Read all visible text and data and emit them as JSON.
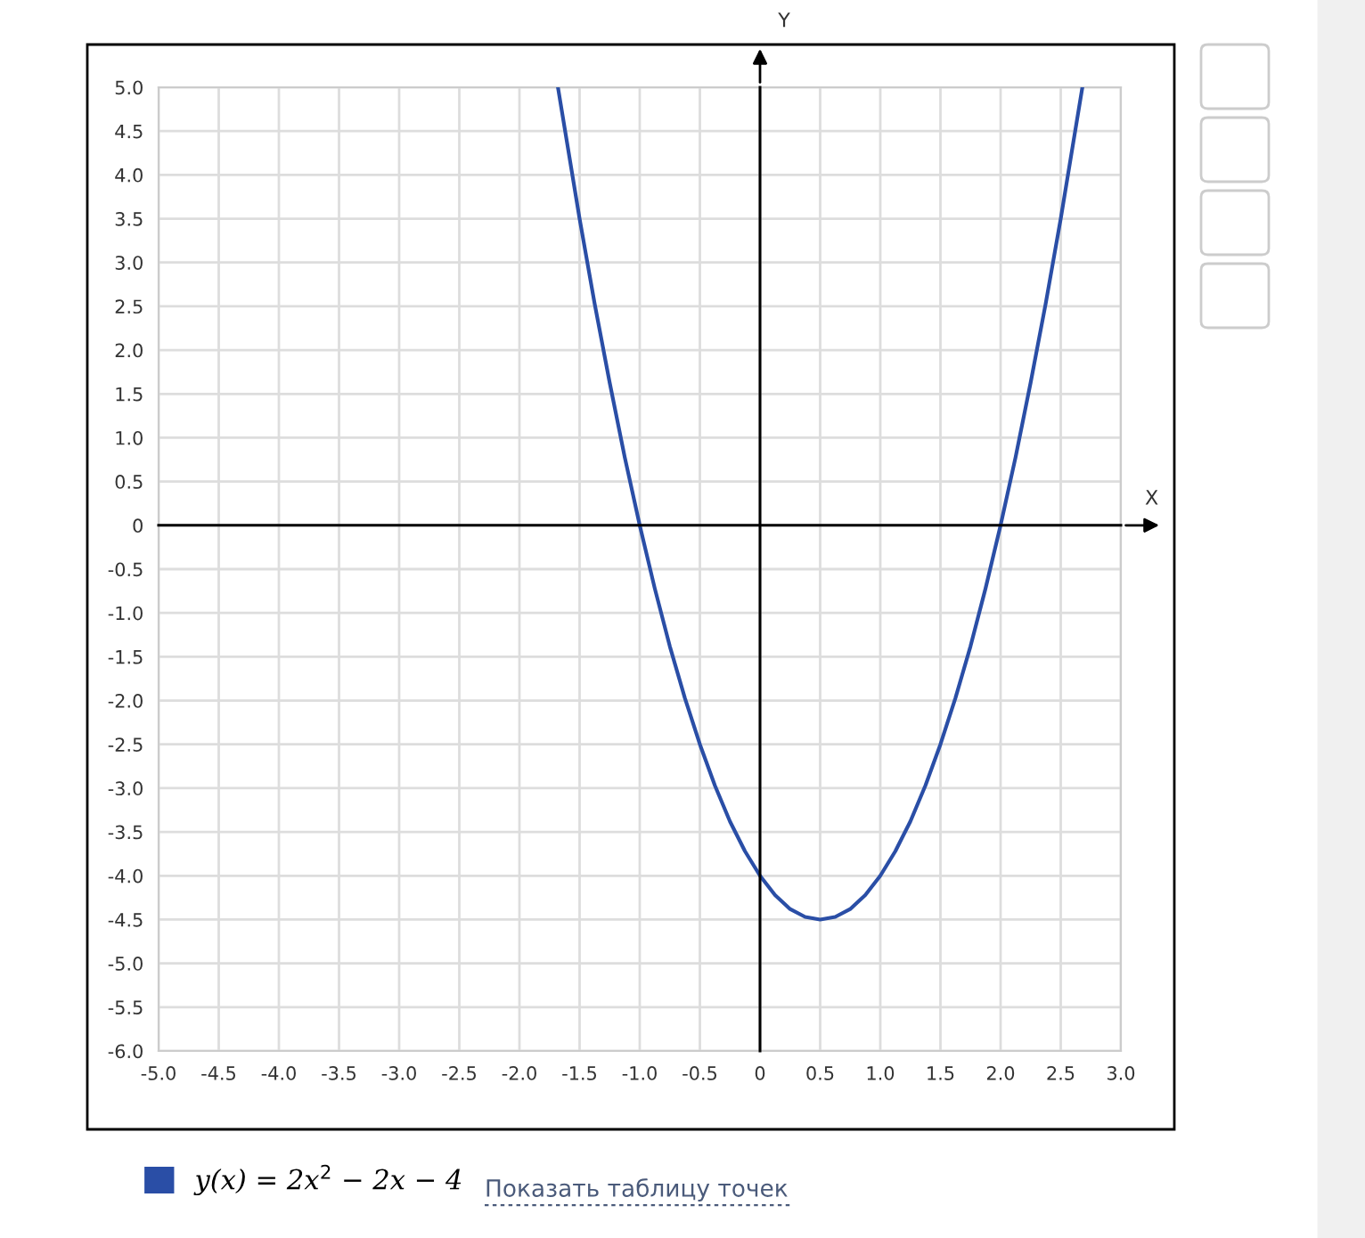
{
  "chart_data": {
    "type": "line",
    "xlabel": "X",
    "ylabel": "Y",
    "x": [
      -1.68,
      -1.5,
      -1.375,
      -1.25,
      -1.125,
      -1,
      -0.875,
      -0.75,
      -0.625,
      -0.5,
      -0.375,
      -0.25,
      -0.125,
      0,
      0.125,
      0.25,
      0.375,
      0.5,
      0.625,
      0.75,
      0.875,
      1,
      1.125,
      1.25,
      1.375,
      1.5,
      1.625,
      1.75,
      1.875,
      2,
      2.125,
      2.25,
      2.375,
      2.5,
      2.68
    ],
    "series": [
      {
        "name": "y(x) = 2x$^{2}$ − 2x − 4",
        "color": "#2a4ea6",
        "values": [
          5,
          3.5,
          2.53,
          1.63,
          0.78,
          0,
          -0.72,
          -1.38,
          -1.97,
          -2.5,
          -2.97,
          -3.38,
          -3.72,
          -4,
          -4.22,
          -4.38,
          -4.47,
          -4.5,
          -4.47,
          -4.38,
          -4.22,
          -4,
          -3.72,
          -3.38,
          -2.97,
          -2.5,
          -1.97,
          -1.38,
          -0.72,
          0,
          0.78,
          1.63,
          2.53,
          3.5,
          5
        ]
      }
    ],
    "xlim": [
      -5,
      3
    ],
    "ylim": [
      -6,
      5
    ],
    "xticks": [
      {
        "value": -5,
        "label": "-5.0"
      },
      {
        "value": -4.5,
        "label": "-4.5"
      },
      {
        "value": -4,
        "label": "-4.0"
      },
      {
        "value": -3.5,
        "label": "-3.5"
      },
      {
        "value": -3,
        "label": "-3.0"
      },
      {
        "value": -2.5,
        "label": "-2.5"
      },
      {
        "value": -2,
        "label": "-2.0"
      },
      {
        "value": -1.5,
        "label": "-1.5"
      },
      {
        "value": -1,
        "label": "-1.0"
      },
      {
        "value": -0.5,
        "label": "-0.5"
      },
      0,
      {
        "value": 0.5,
        "label": "0.5"
      },
      {
        "value": 1,
        "label": "1.0"
      },
      {
        "value": 1.5,
        "label": "1.5"
      },
      {
        "value": 2,
        "label": "2.0"
      },
      {
        "value": 2.5,
        "label": "2.5"
      },
      {
        "value": 3,
        "label": "3.0"
      }
    ],
    "yticks": [
      {
        "value": 5,
        "label": "5.0"
      },
      {
        "value": 4.5,
        "label": "4.5"
      },
      {
        "value": 4,
        "label": "4.0"
      },
      {
        "value": 3.5,
        "label": "3.5"
      },
      {
        "value": 3,
        "label": "3.0"
      },
      {
        "value": 2.5,
        "label": "2.5"
      },
      {
        "value": 2,
        "label": "2.0"
      },
      {
        "value": 1.5,
        "label": "1.5"
      },
      {
        "value": 1,
        "label": "1.0"
      },
      {
        "value": 0.5,
        "label": "0.5"
      },
      0,
      {
        "value": -0.5,
        "label": "-0.5"
      },
      {
        "value": -1,
        "label": "-1.0"
      },
      {
        "value": -1.5,
        "label": "-1.5"
      },
      {
        "value": -2,
        "label": "-2.0"
      },
      {
        "value": -2.5,
        "label": "-2.5"
      },
      {
        "value": -3,
        "label": "-3.0"
      },
      {
        "value": -3.5,
        "label": "-3.5"
      },
      {
        "value": -4,
        "label": "-4.0"
      },
      {
        "value": -4.5,
        "label": "-4.5"
      },
      {
        "value": -5,
        "label": "-5.0"
      },
      {
        "value": -5.5,
        "label": "-5.5"
      },
      {
        "value": -6,
        "label": "-6.0"
      }
    ],
    "grid": true,
    "legend": "bottom left",
    "marker": "none",
    "line_style": "solid",
    "annotations": [
      "Показать таблицу точек"
    ]
  }
}
